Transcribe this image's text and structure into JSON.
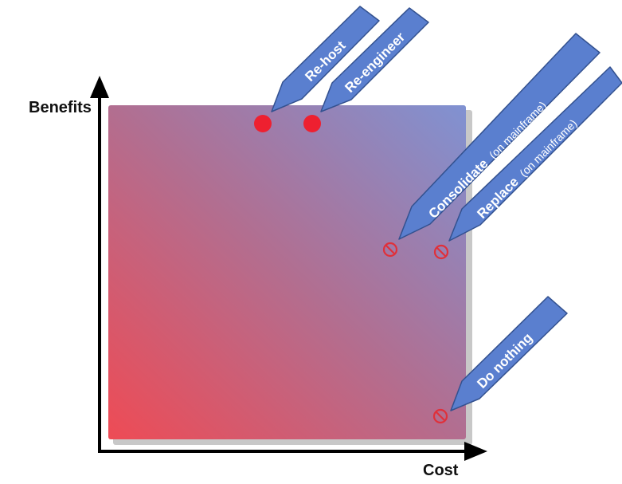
{
  "axes": {
    "y_label": "Benefits",
    "x_label": "Cost"
  },
  "colors": {
    "gradient_low": "#EE4B55",
    "gradient_high": "#8092D2",
    "callout_fill": "#5A7FCF",
    "callout_stroke": "#33518F",
    "viable_marker": "#EE2030",
    "rejected_marker": "#E0303A",
    "axis": "#000000"
  },
  "options": [
    {
      "label": "Re-host",
      "note": "",
      "marker": "viable-dot"
    },
    {
      "label": "Re-engineer",
      "note": "",
      "marker": "viable-dot"
    },
    {
      "label": "Consolidate",
      "note": "(on mainframe)",
      "marker": "rejected-symbol"
    },
    {
      "label": "Replace",
      "note": "(on mainframe)",
      "marker": "rejected-symbol"
    },
    {
      "label": "Do nothing",
      "note": "",
      "marker": "rejected-symbol"
    }
  ]
}
